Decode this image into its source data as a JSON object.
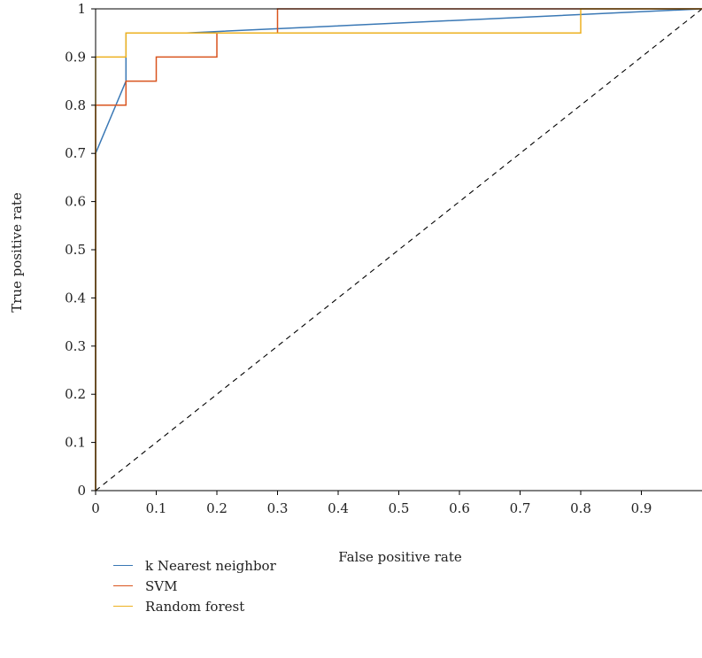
{
  "chart_data": {
    "type": "line",
    "title": "",
    "xlabel": "False positive rate",
    "ylabel": "True positive rate",
    "xlim": [
      0,
      1
    ],
    "ylim": [
      0,
      1
    ],
    "xticks": [
      "0",
      "0.1",
      "0.2",
      "0.3",
      "0.4",
      "0.5",
      "0.6",
      "0.7",
      "0.8",
      "0.9"
    ],
    "xtick_values": [
      0,
      0.1,
      0.2,
      0.3,
      0.4,
      0.5,
      0.6,
      0.7,
      0.8,
      0.9
    ],
    "yticks": [
      "0",
      "0.1",
      "0.2",
      "0.3",
      "0.4",
      "0.5",
      "0.6",
      "0.7",
      "0.8",
      "0.9",
      "1"
    ],
    "ytick_values": [
      0,
      0.1,
      0.2,
      0.3,
      0.4,
      0.5,
      0.6,
      0.7,
      0.8,
      0.9,
      1
    ],
    "grid": false,
    "legend_position": "bottom-left",
    "series": [
      {
        "name": "k Nearest neighbor",
        "color": "#3a78b5",
        "x": [
          0,
          0,
          0.05,
          0.05,
          0.15,
          1
        ],
        "y": [
          0,
          0.7,
          0.85,
          0.95,
          0.95,
          1
        ]
      },
      {
        "name": "SVM",
        "color": "#d9541e",
        "x": [
          0,
          0,
          0.05,
          0.05,
          0.1,
          0.1,
          0.2,
          0.2,
          0.3,
          0.3,
          1
        ],
        "y": [
          0,
          0.8,
          0.8,
          0.85,
          0.85,
          0.9,
          0.9,
          0.95,
          0.95,
          1,
          1
        ]
      },
      {
        "name": "Random forest",
        "color": "#edb120",
        "x": [
          0,
          0,
          0.05,
          0.05,
          0.8,
          0.8,
          1
        ],
        "y": [
          0,
          0.9,
          0.9,
          0.95,
          0.95,
          1,
          1
        ]
      }
    ],
    "reference_line": {
      "style": "dashed",
      "color": "#000000",
      "x": [
        0,
        1
      ],
      "y": [
        0,
        1
      ]
    }
  }
}
